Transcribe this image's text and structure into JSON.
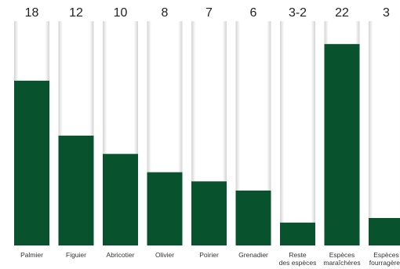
{
  "chart_data": {
    "type": "bar",
    "title": "",
    "xlabel": "",
    "ylabel": "",
    "ylim": [
      0,
      24.5
    ],
    "grid": false,
    "legend": "none",
    "categories": [
      [
        "Palmier"
      ],
      [
        "Figuier"
      ],
      [
        "Abricotier"
      ],
      [
        "Olivier"
      ],
      [
        "Poirier"
      ],
      [
        "Grenadier"
      ],
      [
        "Reste",
        "des espèces"
      ],
      [
        "Espèces",
        "maraîchères"
      ],
      [
        "Espèces",
        "fourragères"
      ]
    ],
    "values": [
      18,
      12,
      10,
      8,
      7,
      6,
      2.5,
      22,
      3
    ],
    "value_labels": [
      "18",
      "12",
      "10",
      "8",
      "7",
      "6",
      "3-2",
      "22",
      "3"
    ],
    "colors": {
      "bar_fill": "#08522d",
      "track_fill": "#ffffff",
      "track_edge": "#d6d6d6"
    }
  }
}
